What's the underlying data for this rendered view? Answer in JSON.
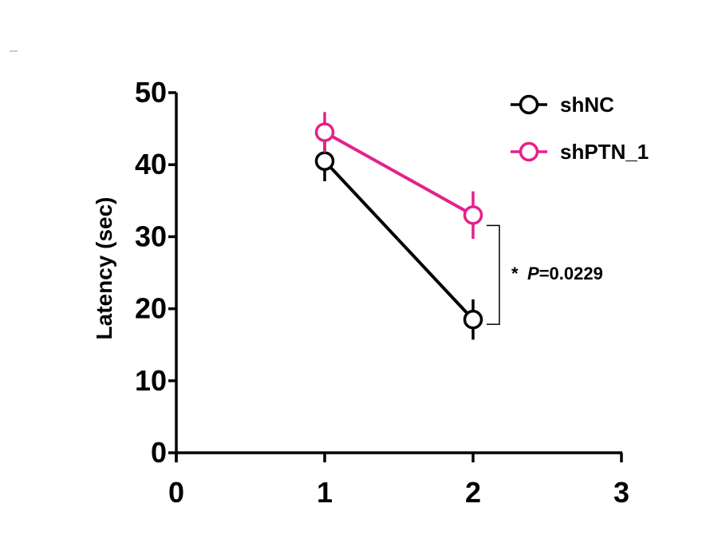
{
  "chart_data": {
    "type": "line",
    "title": "",
    "xlabel": "",
    "ylabel": "Latency (sec)",
    "xlim": [
      0,
      3
    ],
    "ylim": [
      0,
      50
    ],
    "x_ticks": [
      "0",
      "1",
      "2",
      "3"
    ],
    "y_ticks": [
      "0",
      "10",
      "20",
      "30",
      "40",
      "50"
    ],
    "grid": false,
    "legend_position": "top-right",
    "series": [
      {
        "name": "shNC",
        "color": "#000000",
        "x": [
          1,
          2
        ],
        "y": [
          40.5,
          18.5
        ],
        "error": [
          2.8,
          2.8
        ]
      },
      {
        "name": "shPTN_1",
        "color": "#E4218A",
        "x": [
          1,
          2
        ],
        "y": [
          44.5,
          33.0
        ],
        "error": [
          2.8,
          3.3
        ]
      }
    ],
    "annotation": {
      "star": "*",
      "p_label": "P",
      "p_value": "=0.0229"
    }
  }
}
